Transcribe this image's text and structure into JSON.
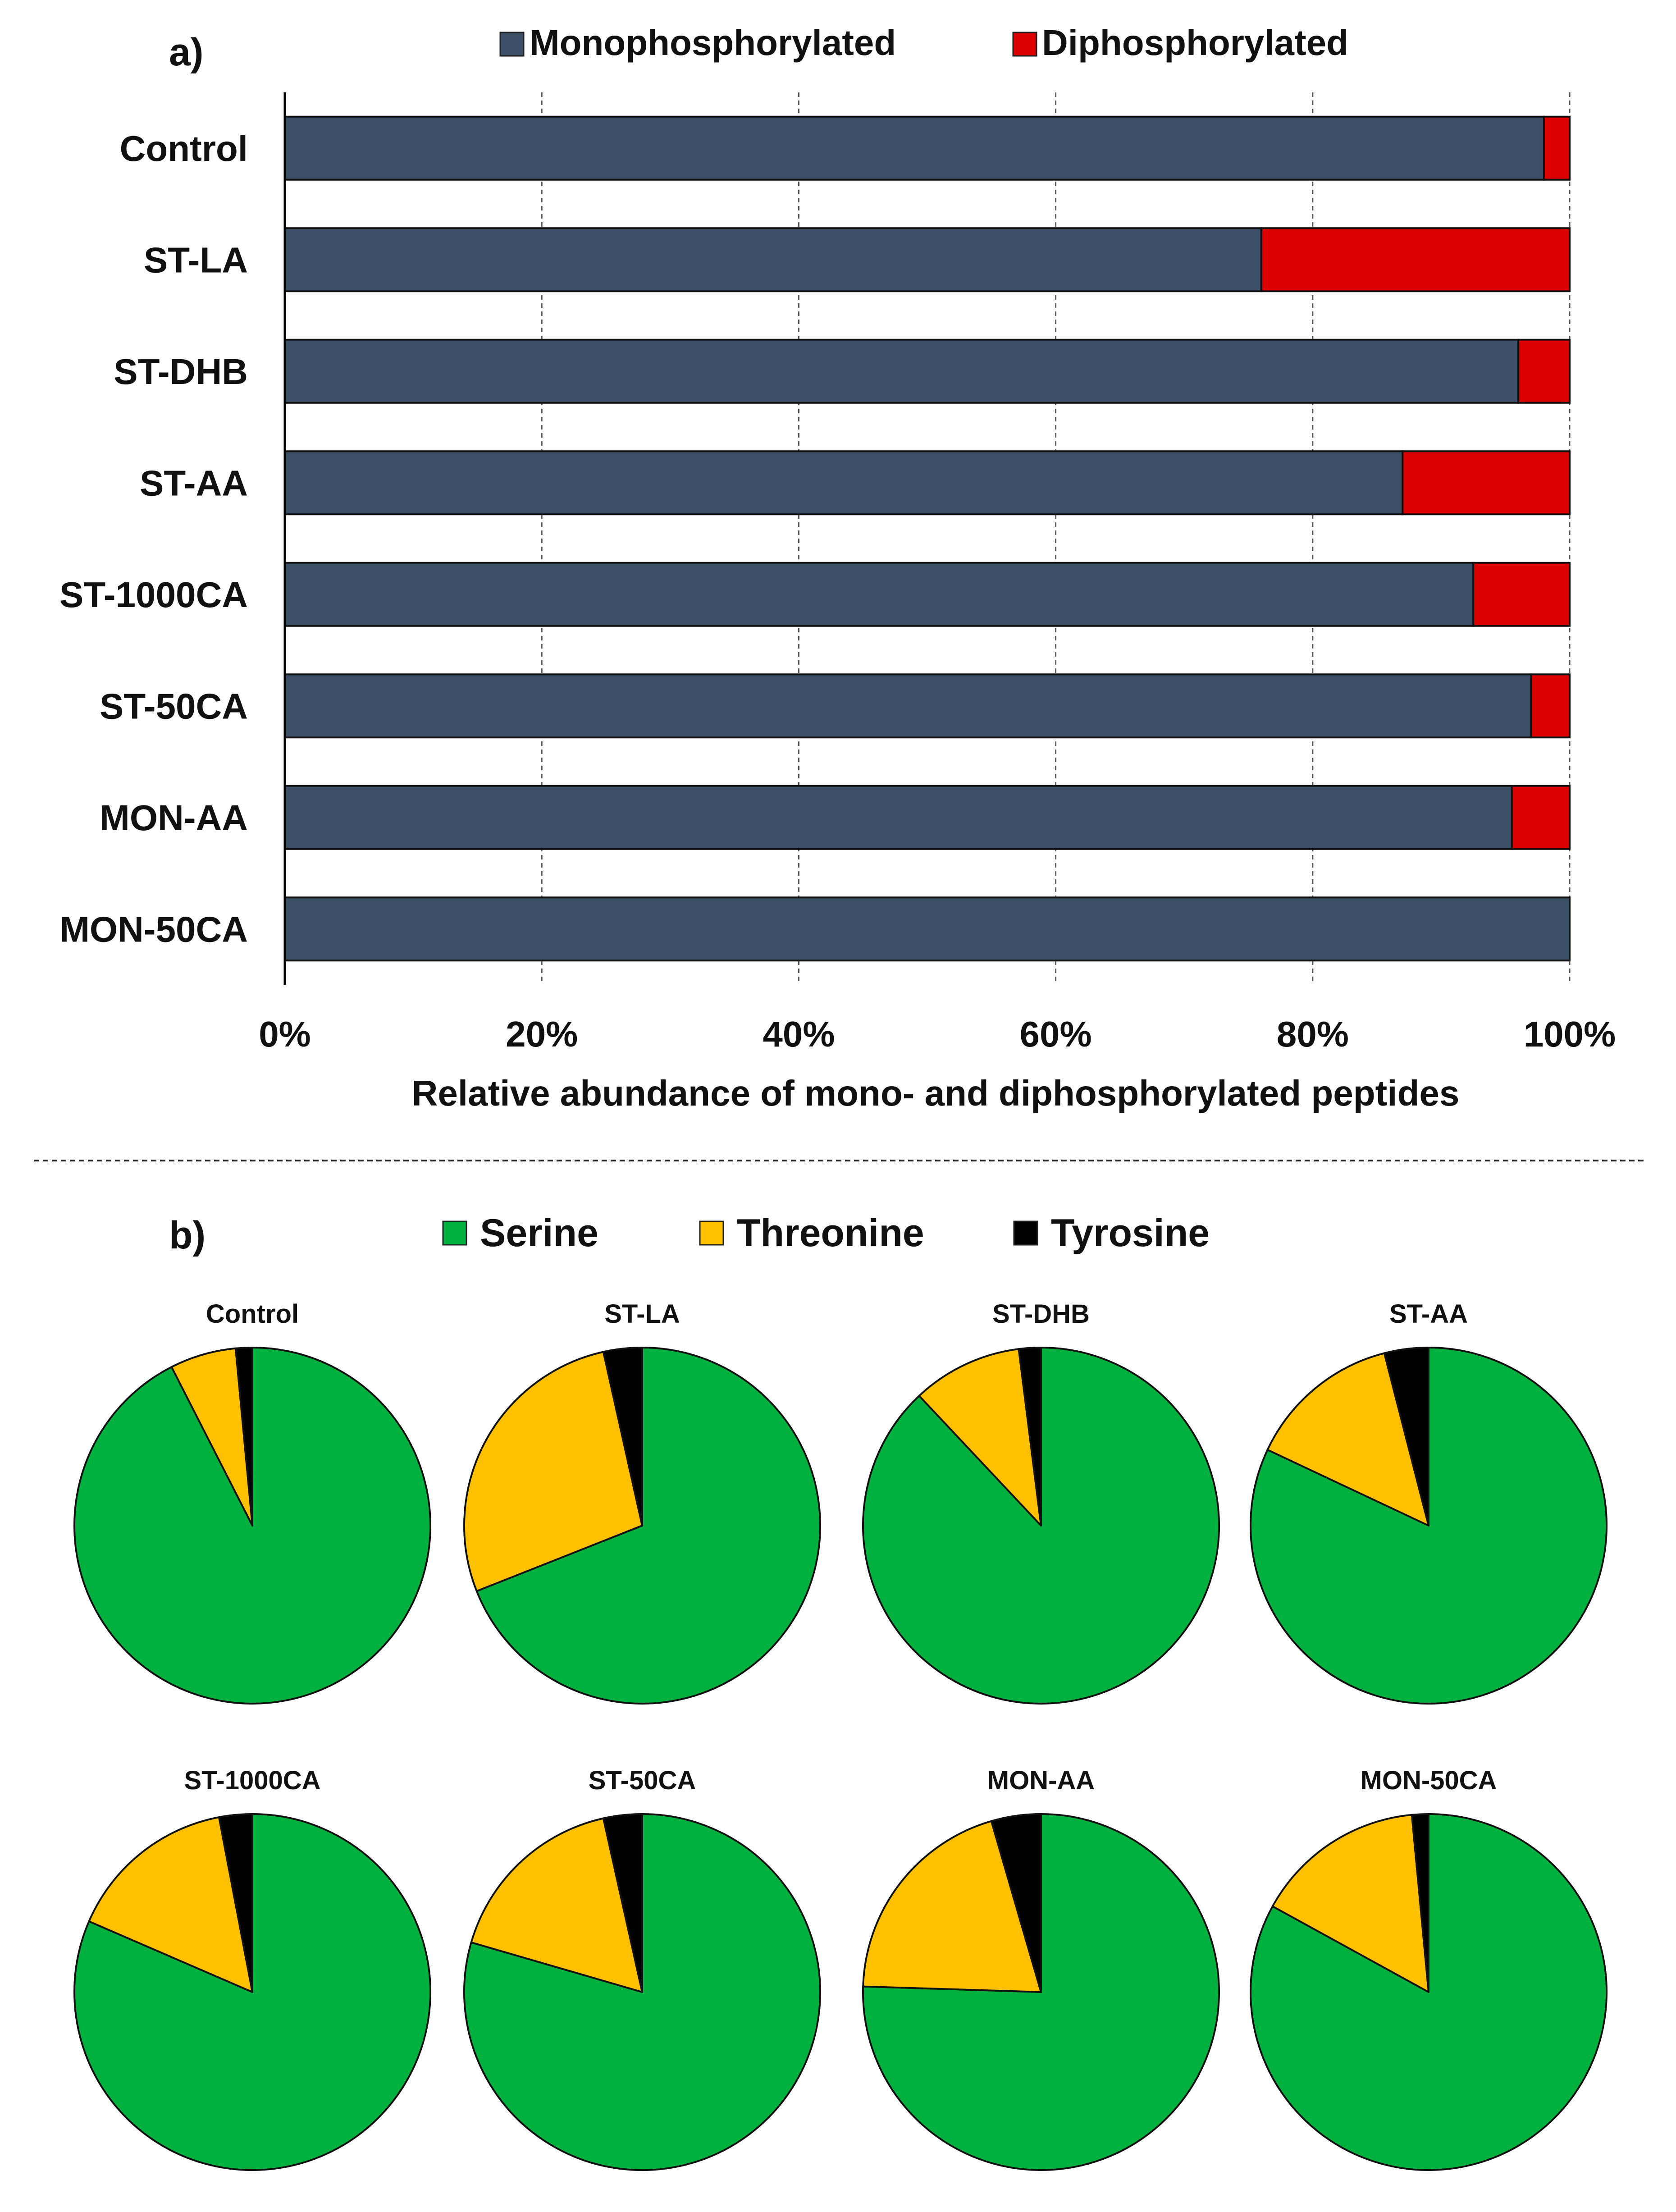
{
  "chart_data": [
    {
      "panel_label": "a)",
      "type": "bar",
      "orientation": "horizontal",
      "stacked": true,
      "categories": [
        "Control",
        "ST-LA",
        "ST-DHB",
        "ST-AA",
        "ST-1000CA",
        "ST-50CA",
        "MON-AA",
        "MON-50CA"
      ],
      "series": [
        {
          "name": "Monophosphorylated",
          "color": "#3b4f66",
          "values": [
            98,
            76,
            96,
            87,
            92.5,
            97,
            95.5,
            100
          ]
        },
        {
          "name": "Diphosphorylated",
          "color": "#dd0000",
          "values": [
            2,
            24,
            4,
            13,
            7.5,
            3,
            4.5,
            0
          ]
        }
      ],
      "xlabel": "Relative abundance of mono- and diphosphorylated peptides",
      "xlim": [
        0,
        100
      ],
      "xticks": [
        "0%",
        "20%",
        "40%",
        "60%",
        "80%",
        "100%"
      ],
      "grid": "vertical dashed",
      "legend": "top"
    },
    {
      "panel_label": "b)",
      "type": "pie",
      "categories": [
        "Serine",
        "Threonine",
        "Tyrosine"
      ],
      "colors": [
        "#00b140",
        "#ffc000",
        "#000000"
      ],
      "legend": "top",
      "pies": [
        {
          "title": "Control",
          "values": [
            92.5,
            6,
            1.5
          ]
        },
        {
          "title": "ST-LA",
          "values": [
            69,
            27.5,
            3.5
          ]
        },
        {
          "title": "ST-DHB",
          "values": [
            88,
            10,
            2
          ]
        },
        {
          "title": "ST-AA",
          "values": [
            82,
            14,
            4
          ]
        },
        {
          "title": "ST-1000CA",
          "values": [
            81.5,
            15.5,
            3
          ]
        },
        {
          "title": "ST-50CA",
          "values": [
            79.5,
            17,
            3.5
          ]
        },
        {
          "title": "MON-AA",
          "values": [
            75.5,
            20,
            4.5
          ]
        },
        {
          "title": "MON-50CA",
          "values": [
            83,
            15.5,
            1.5
          ]
        }
      ]
    }
  ]
}
